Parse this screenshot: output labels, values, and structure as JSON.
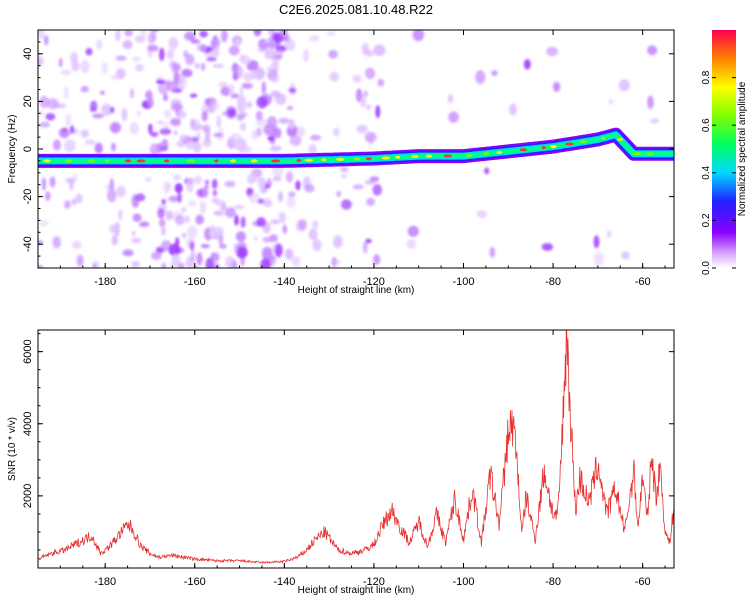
{
  "title": "C2E6.2025.081.10.48.R22",
  "chart_data": [
    {
      "type": "heatmap",
      "xlabel": "Height of straight line (km)",
      "ylabel": "Frequency (Hz)",
      "xlim": [
        -195,
        -53
      ],
      "ylim": [
        -50,
        50
      ],
      "xticks": [
        -180,
        -160,
        -140,
        -120,
        -100,
        -80,
        -60
      ],
      "yticks": [
        -40,
        -20,
        0,
        20,
        40
      ],
      "colorbar": {
        "label": "Normalized spectral amplitude",
        "range": [
          0.0,
          1.0
        ],
        "ticks": [
          "0.0",
          "0.2",
          "0.4",
          "0.6",
          "0.8"
        ]
      },
      "ridge_line": {
        "x": [
          -195,
          -180,
          -160,
          -140,
          -120,
          -110,
          -100,
          -90,
          -80,
          -70,
          -66,
          -62,
          -55
        ],
        "y": [
          -5,
          -5,
          -5,
          -5,
          -4,
          -3,
          -3,
          -1,
          1,
          4,
          6,
          -2,
          -2
        ]
      }
    },
    {
      "type": "line",
      "xlabel": "Height of straight line (km)",
      "ylabel": "SNR (10 * v/v)",
      "xlim": [
        -195,
        -53
      ],
      "ylim": [
        0,
        6600
      ],
      "xticks": [
        -180,
        -160,
        -140,
        -120,
        -100,
        -80,
        -60
      ],
      "yticks": [
        2000,
        4000,
        6000
      ],
      "color": "#e83030",
      "series": [
        {
          "x": [
            -195,
            -192,
            -189,
            -186,
            -183,
            -181,
            -179,
            -177,
            -175,
            -174,
            -172,
            -170,
            -168,
            -165,
            -160,
            -155,
            -150,
            -145,
            -140,
            -137,
            -135,
            -133,
            -131,
            -128,
            -125,
            -122,
            -120,
            -118,
            -116,
            -114,
            -112,
            -110,
            -108,
            -106,
            -104,
            -102,
            -100,
            -98,
            -96,
            -94,
            -92,
            -90,
            -89,
            -88,
            -87,
            -86,
            -84,
            -82,
            -80,
            -79,
            -78,
            -77,
            -76,
            -75,
            -74,
            -72,
            -70,
            -68,
            -66,
            -64,
            -62,
            -61,
            -60,
            -59,
            -58,
            -57,
            -56,
            -55,
            -54,
            -53
          ],
          "y": [
            250,
            400,
            500,
            700,
            900,
            400,
            600,
            900,
            1200,
            1100,
            600,
            400,
            300,
            350,
            250,
            200,
            200,
            150,
            180,
            300,
            500,
            800,
            1000,
            500,
            400,
            500,
            650,
            1200,
            1600,
            1100,
            700,
            1300,
            600,
            1500,
            700,
            1900,
            800,
            2200,
            700,
            2600,
            1200,
            3800,
            4000,
            3000,
            900,
            2000,
            800,
            2700,
            1500,
            1400,
            3500,
            6600,
            4000,
            1600,
            2500,
            1800,
            2900,
            1500,
            2200,
            1000,
            2700,
            1100,
            2600,
            1300,
            3100,
            2000,
            2800,
            1000,
            700,
            1700
          ]
        }
      ]
    }
  ]
}
